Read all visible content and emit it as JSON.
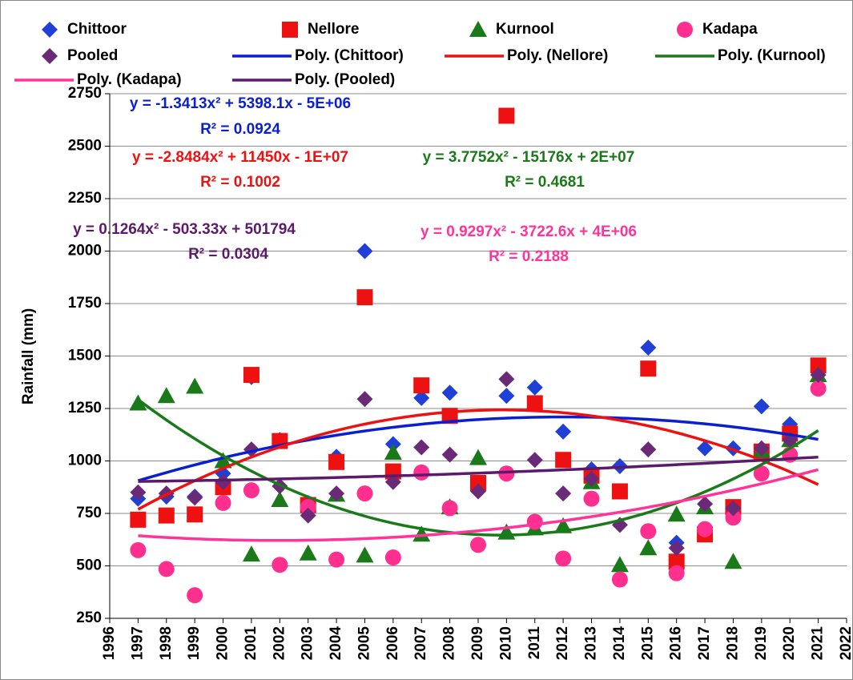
{
  "chart_data": {
    "type": "scatter",
    "y_label": "Rainfall (mm)",
    "x": [
      1997,
      1998,
      1999,
      2000,
      2001,
      2002,
      2003,
      2004,
      2005,
      2006,
      2007,
      2008,
      2009,
      2010,
      2011,
      2012,
      2013,
      2014,
      2015,
      2016,
      2017,
      2018,
      2019,
      2020,
      2021
    ],
    "xlim": [
      1996,
      2022
    ],
    "xticks": [
      1996,
      1997,
      1998,
      1999,
      2000,
      2001,
      2002,
      2003,
      2004,
      2005,
      2006,
      2007,
      2008,
      2009,
      2010,
      2011,
      2012,
      2013,
      2014,
      2015,
      2016,
      2017,
      2018,
      2019,
      2020,
      2021,
      2022
    ],
    "ylim": [
      250,
      2750
    ],
    "yticks": [
      250,
      500,
      750,
      1000,
      1250,
      1500,
      1750,
      2000,
      2250,
      2500,
      2750
    ],
    "grid": true,
    "series": [
      {
        "name": "Chittoor",
        "color": "#1f3fd6",
        "marker": "diamond",
        "values": [
          820,
          830,
          830,
          940,
          1400,
          1100,
          800,
          1020,
          2000,
          1080,
          1300,
          1325,
          870,
          1310,
          1350,
          1140,
          960,
          975,
          1540,
          610,
          1060,
          1060,
          1260,
          1175,
          1430
        ],
        "trendline": {
          "name": "Poly. (Chittoor)",
          "color": "#0a1fd0",
          "equation": "y = -1.3413x² + 5398.1x - 5E+06",
          "r2": "R² = 0.0924"
        }
      },
      {
        "name": "Nellore",
        "color": "#ee1111",
        "marker": "square",
        "values": [
          720,
          740,
          745,
          875,
          1410,
          1095,
          790,
          995,
          1780,
          950,
          1360,
          1215,
          895,
          2645,
          1275,
          1005,
          930,
          855,
          1440,
          520,
          650,
          780,
          1045,
          1130,
          1455
        ],
        "trendline": {
          "name": "Poly. (Nellore)",
          "color": "#ee1111",
          "equation": "y = -2.8484x² + 11450x - 1E+07",
          "r2": "R² = 0.1002"
        }
      },
      {
        "name": "Kurnool",
        "color": "#1a7a1a",
        "marker": "triangle",
        "values": [
          1275,
          1310,
          1355,
          1000,
          555,
          815,
          560,
          840,
          550,
          1040,
          650,
          780,
          1015,
          660,
          680,
          690,
          900,
          505,
          585,
          745,
          780,
          520,
          1050,
          1100,
          1410
        ],
        "trendline": {
          "name": "Poly. (Kurnool)",
          "color": "#1a7a1a",
          "equation": "y = 3.7752x² - 15176x + 2E+07",
          "r2": "R² = 0.4681"
        }
      },
      {
        "name": "Kadapa",
        "color": "#ff2f8f",
        "marker": "circle",
        "values": [
          575,
          485,
          360,
          800,
          860,
          505,
          780,
          530,
          845,
          540,
          945,
          775,
          600,
          940,
          710,
          535,
          820,
          435,
          665,
          465,
          675,
          730,
          940,
          1030,
          1345
        ],
        "trendline": {
          "name": "Poly. (Kadapa)",
          "color": "#ff3399",
          "equation": "y = 0.9297x² - 3722.6x + 4E+06",
          "r2": "R² = 0.2188"
        }
      },
      {
        "name": "Pooled",
        "color": "#6b2a77",
        "marker": "diamond",
        "values": [
          850,
          845,
          825,
          900,
          1055,
          880,
          740,
          845,
          1295,
          900,
          1065,
          1030,
          855,
          1390,
          1005,
          845,
          915,
          695,
          1055,
          585,
          795,
          775,
          1060,
          1100,
          1410
        ],
        "trendline": {
          "name": "Poly. (Pooled)",
          "color": "#5c1a6b",
          "equation": "y = 0.1264x² - 503.33x + 501794",
          "r2": "R² = 0.0304"
        }
      }
    ]
  }
}
